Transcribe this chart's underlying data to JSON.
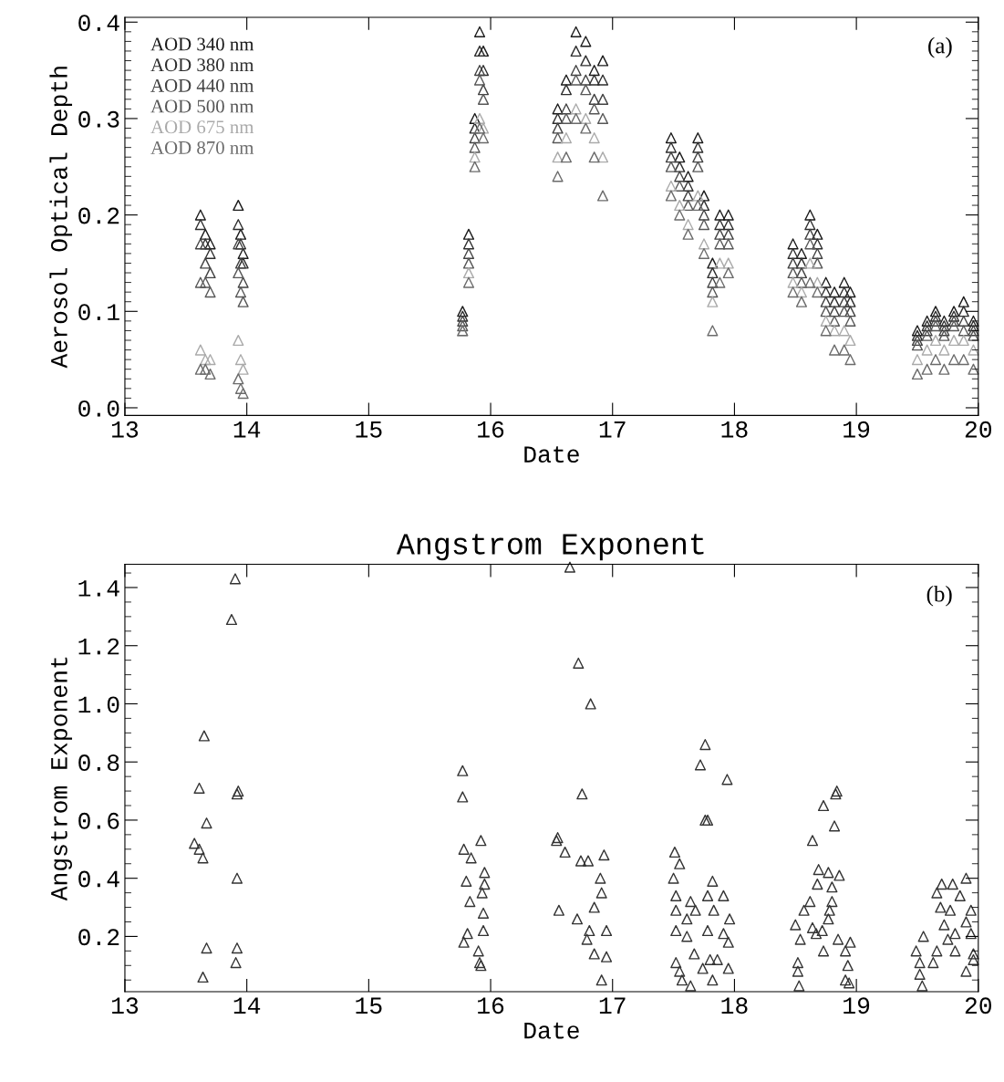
{
  "chart_data": [
    {
      "type": "scatter",
      "ylabel": "Aerosol Optical Depth",
      "xlabel": "Date",
      "annotations": [
        "(a)"
      ],
      "marker": "triangle",
      "legend": "top left",
      "grid": false,
      "xlim": [
        13,
        20
      ],
      "ylim": [
        -0.008,
        0.405
      ],
      "xticks": [
        13,
        14,
        15,
        16,
        17,
        18,
        19,
        20
      ],
      "yticks": [
        {
          "value": 0,
          "label": "0.0"
        },
        0.1,
        0.2,
        0.3,
        0.4
      ],
      "x": [
        13.62,
        13.66,
        13.7,
        13.93,
        13.95,
        13.97,
        15.77,
        15.82,
        15.87,
        15.91,
        15.94,
        16.55,
        16.62,
        16.7,
        16.78,
        16.85,
        16.92,
        17.48,
        17.55,
        17.62,
        17.7,
        17.75,
        17.82,
        17.88,
        17.95,
        18.48,
        18.55,
        18.62,
        18.68,
        18.75,
        18.82,
        18.9,
        18.95,
        19.5,
        19.58,
        19.65,
        19.72,
        19.8,
        19.88,
        19.96
      ],
      "series": [
        {
          "name": "AOD 340 nm",
          "color": "#1a1a1a",
          "values": [
            0.2,
            0.18,
            0.17,
            0.21,
            0.18,
            0.16,
            0.1,
            0.18,
            0.3,
            0.39,
            0.37,
            0.31,
            0.34,
            0.39,
            0.38,
            0.35,
            0.36,
            0.28,
            0.26,
            0.24,
            0.28,
            0.22,
            0.15,
            0.2,
            0.2,
            0.17,
            0.16,
            0.2,
            0.18,
            0.13,
            0.12,
            0.13,
            0.12,
            0.08,
            0.09,
            0.1,
            0.09,
            0.1,
            0.11,
            0.09
          ]
        },
        {
          "name": "AOD 380 nm",
          "color": "#2e2e2e",
          "values": [
            0.19,
            0.17,
            0.16,
            0.19,
            0.17,
            0.15,
            0.095,
            0.17,
            0.29,
            0.37,
            0.35,
            0.3,
            0.33,
            0.37,
            0.36,
            0.34,
            0.34,
            0.27,
            0.25,
            0.23,
            0.27,
            0.21,
            0.14,
            0.19,
            0.19,
            0.16,
            0.15,
            0.19,
            0.17,
            0.12,
            0.11,
            0.12,
            0.11,
            0.075,
            0.085,
            0.095,
            0.085,
            0.095,
            0.1,
            0.085
          ]
        },
        {
          "name": "AOD 440 nm",
          "color": "#424242",
          "values": [
            0.17,
            0.15,
            0.14,
            0.17,
            0.15,
            0.13,
            0.09,
            0.16,
            0.28,
            0.35,
            0.33,
            0.29,
            0.31,
            0.35,
            0.34,
            0.32,
            0.32,
            0.26,
            0.24,
            0.22,
            0.26,
            0.2,
            0.13,
            0.18,
            0.18,
            0.15,
            0.14,
            0.18,
            0.16,
            0.11,
            0.1,
            0.11,
            0.1,
            0.07,
            0.08,
            0.09,
            0.08,
            0.09,
            0.09,
            0.08
          ]
        },
        {
          "name": "AOD 500 nm",
          "color": "#575757",
          "values": [
            0.13,
            0.13,
            0.12,
            0.14,
            0.12,
            0.11,
            0.085,
            0.15,
            0.27,
            0.34,
            0.32,
            0.28,
            0.3,
            0.34,
            0.33,
            0.31,
            0.3,
            0.25,
            0.23,
            0.21,
            0.25,
            0.19,
            0.12,
            0.17,
            0.17,
            0.14,
            0.13,
            0.17,
            0.15,
            0.1,
            0.09,
            0.1,
            0.09,
            0.065,
            0.075,
            0.085,
            0.075,
            0.085,
            0.08,
            0.075
          ]
        },
        {
          "name": "AOD 675 nm",
          "color": "#aaaaaa",
          "values": [
            0.06,
            0.05,
            0.05,
            0.07,
            0.05,
            0.04,
            0.08,
            0.14,
            0.26,
            0.3,
            0.29,
            0.26,
            0.28,
            0.31,
            0.3,
            0.28,
            0.26,
            0.23,
            0.21,
            0.19,
            0.22,
            0.17,
            0.11,
            0.15,
            0.15,
            0.13,
            0.12,
            0.15,
            0.13,
            0.09,
            0.08,
            0.08,
            0.07,
            0.05,
            0.06,
            0.07,
            0.06,
            0.07,
            0.07,
            0.06
          ]
        },
        {
          "name": "AOD 870 nm",
          "color": "#6b6b6b",
          "values": [
            0.04,
            0.04,
            0.035,
            0.03,
            0.02,
            0.015,
            0.08,
            0.13,
            0.25,
            0.29,
            0.28,
            0.24,
            0.26,
            0.3,
            0.29,
            0.26,
            0.22,
            0.22,
            0.2,
            0.18,
            0.21,
            0.16,
            0.08,
            0.13,
            0.14,
            0.12,
            0.11,
            0.13,
            0.12,
            0.08,
            0.06,
            0.06,
            0.05,
            0.035,
            0.04,
            0.05,
            0.04,
            0.05,
            0.05,
            0.04
          ]
        }
      ]
    },
    {
      "type": "scatter",
      "title": "Angstrom Exponent",
      "ylabel": "Angstrom Exponent",
      "xlabel": "Date",
      "annotations": [
        "(b)"
      ],
      "marker": "triangle",
      "grid": false,
      "xlim": [
        13,
        20
      ],
      "ylim": [
        0.01,
        1.48
      ],
      "xticks": [
        13,
        14,
        15,
        16,
        17,
        18,
        19,
        20
      ],
      "yticks": [
        0.2,
        0.4,
        0.6,
        0.8,
        {
          "value": 1.0,
          "label": "1.0"
        },
        1.2,
        1.4
      ],
      "series": [
        {
          "color": "#333333",
          "x": [
            13.905,
            13.875,
            13.65,
            13.61,
            13.92,
            13.93,
            13.67,
            13.57,
            13.61,
            13.64,
            13.92,
            13.67,
            13.92,
            13.91,
            13.64,
            15.77,
            15.77,
            15.92,
            15.78,
            15.84,
            15.95,
            15.8,
            15.95,
            15.93,
            15.83,
            15.94,
            15.94,
            15.81,
            15.78,
            15.9,
            15.91,
            15.92,
            16.54,
            16.65,
            16.72,
            16.82,
            16.75,
            16.55,
            16.61,
            16.74,
            16.8,
            16.93,
            16.9,
            16.91,
            16.85,
            16.56,
            16.71,
            16.81,
            16.95,
            16.79,
            16.85,
            16.95,
            16.91,
            17.76,
            17.72,
            17.94,
            17.76,
            17.78,
            17.51,
            17.55,
            17.5,
            17.82,
            17.52,
            17.64,
            17.91,
            17.78,
            17.52,
            17.68,
            17.83,
            17.61,
            17.96,
            17.52,
            17.78,
            17.91,
            17.95,
            17.61,
            17.67,
            17.52,
            17.8,
            17.86,
            17.55,
            17.74,
            17.95,
            17.82,
            17.57,
            17.64,
            18.83,
            18.84,
            18.73,
            18.82,
            18.64,
            18.69,
            18.77,
            18.86,
            18.68,
            18.8,
            18.62,
            18.8,
            18.57,
            18.78,
            18.77,
            18.5,
            18.64,
            18.72,
            18.54,
            18.67,
            18.85,
            18.95,
            18.73,
            18.91,
            18.52,
            18.93,
            18.52,
            18.91,
            18.53,
            18.94,
            19.9,
            19.7,
            19.79,
            19.66,
            19.85,
            19.77,
            19.69,
            19.94,
            19.72,
            19.9,
            19.55,
            19.81,
            19.94,
            19.75,
            19.49,
            19.66,
            19.81,
            19.96,
            19.52,
            19.63,
            19.96,
            19.9,
            19.52,
            19.54
          ],
          "values": [
            1.43,
            1.29,
            0.89,
            0.71,
            0.69,
            0.7,
            0.59,
            0.52,
            0.5,
            0.47,
            0.4,
            0.16,
            0.16,
            0.11,
            0.06,
            0.77,
            0.68,
            0.53,
            0.5,
            0.47,
            0.42,
            0.39,
            0.38,
            0.35,
            0.32,
            0.28,
            0.22,
            0.21,
            0.18,
            0.15,
            0.11,
            0.1,
            0.53,
            1.47,
            1.14,
            1.0,
            0.69,
            0.54,
            0.49,
            0.46,
            0.46,
            0.48,
            0.4,
            0.35,
            0.3,
            0.29,
            0.26,
            0.22,
            0.22,
            0.19,
            0.14,
            0.13,
            0.05,
            0.86,
            0.79,
            0.74,
            0.6,
            0.6,
            0.49,
            0.45,
            0.4,
            0.39,
            0.34,
            0.32,
            0.34,
            0.34,
            0.29,
            0.29,
            0.29,
            0.26,
            0.26,
            0.22,
            0.22,
            0.21,
            0.18,
            0.2,
            0.14,
            0.11,
            0.12,
            0.12,
            0.08,
            0.09,
            0.09,
            0.05,
            0.05,
            0.03,
            0.69,
            0.7,
            0.65,
            0.58,
            0.53,
            0.43,
            0.42,
            0.41,
            0.38,
            0.37,
            0.32,
            0.32,
            0.29,
            0.29,
            0.26,
            0.24,
            0.23,
            0.22,
            0.19,
            0.21,
            0.19,
            0.18,
            0.15,
            0.15,
            0.11,
            0.1,
            0.08,
            0.05,
            0.03,
            0.04,
            0.4,
            0.38,
            0.38,
            0.35,
            0.34,
            0.29,
            0.3,
            0.29,
            0.24,
            0.25,
            0.2,
            0.21,
            0.21,
            0.19,
            0.15,
            0.15,
            0.15,
            0.14,
            0.11,
            0.11,
            0.12,
            0.08,
            0.07,
            0.03
          ]
        }
      ]
    }
  ]
}
